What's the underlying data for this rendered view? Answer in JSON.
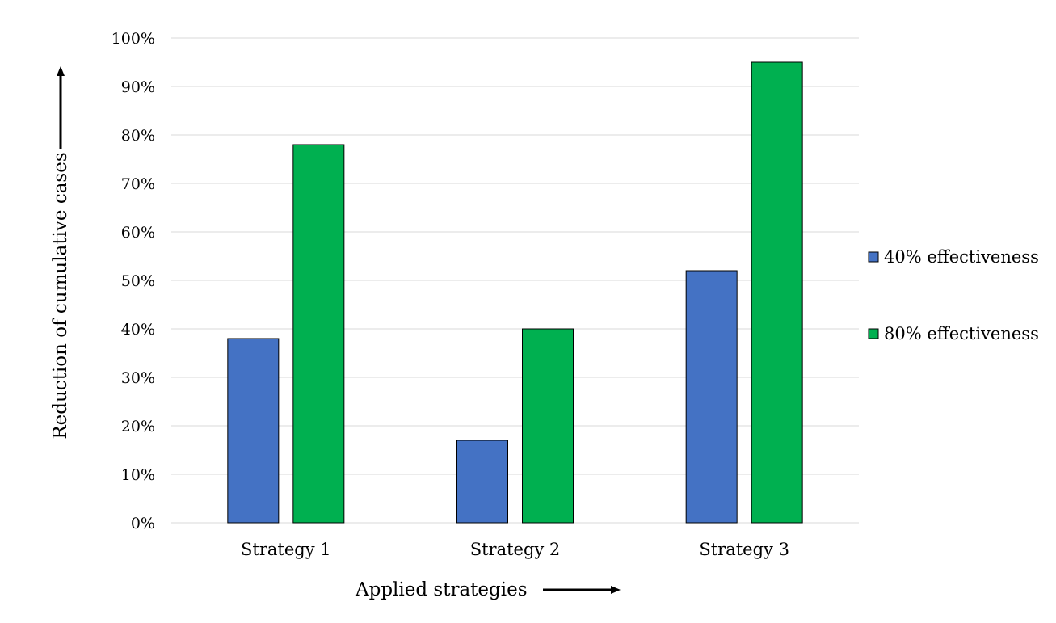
{
  "chart_data": {
    "type": "bar",
    "categories": [
      "Strategy 1",
      "Strategy 2",
      "Strategy 3"
    ],
    "series": [
      {
        "name": "40% effectiveness",
        "values": [
          38,
          17,
          52
        ],
        "color": "#4472c4"
      },
      {
        "name": "80% effectiveness",
        "values": [
          78,
          40,
          95
        ],
        "color": "#00b050"
      }
    ],
    "xlabel": "Applied strategies",
    "ylabel": "Reduction of cumulative cases",
    "ylim": [
      0,
      100
    ],
    "yticks": [
      0,
      10,
      20,
      30,
      40,
      50,
      60,
      70,
      80,
      90,
      100
    ],
    "ytick_labels": [
      "0%",
      "10%",
      "20%",
      "30%",
      "40%",
      "50%",
      "60%",
      "70%",
      "80%",
      "90%",
      "100%"
    ],
    "grid": true,
    "legend_position": "right"
  }
}
